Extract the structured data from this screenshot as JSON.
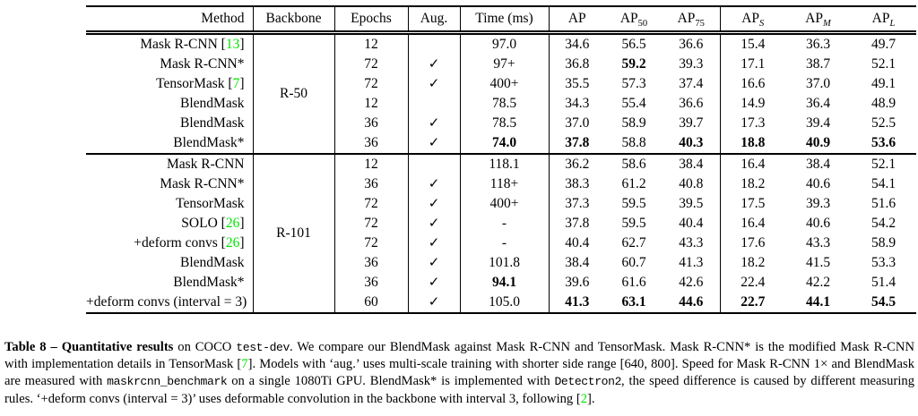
{
  "colors": {
    "citation_green": "#00e400",
    "text": "#000000",
    "background": "#ffffff"
  },
  "table": {
    "check_glyph": "✓",
    "headers": [
      {
        "key": "method",
        "label": "Method"
      },
      {
        "key": "backbone",
        "label": "Backbone"
      },
      {
        "key": "epochs",
        "label": "Epochs"
      },
      {
        "key": "aug",
        "label": "Aug."
      },
      {
        "key": "time",
        "label": "Time (ms)"
      },
      {
        "key": "ap",
        "label": "AP"
      },
      {
        "key": "ap50",
        "label": "AP",
        "sub": "50"
      },
      {
        "key": "ap75",
        "label": "AP",
        "sub": "75"
      },
      {
        "key": "aps",
        "label": "AP",
        "sub": "S",
        "italic_sub": true
      },
      {
        "key": "apm",
        "label": "AP",
        "sub": "M",
        "italic_sub": true
      },
      {
        "key": "apl",
        "label": "AP",
        "sub": "L",
        "italic_sub": true
      }
    ],
    "sections": [
      {
        "backbone": "R-50",
        "rows": [
          {
            "method": "Mask R-CNN",
            "ref": "13",
            "epochs": "12",
            "aug": false,
            "time": "97.0",
            "time_bold": false,
            "values": [
              "34.6",
              "56.5",
              "36.6",
              "15.4",
              "36.3",
              "49.7"
            ],
            "bold": []
          },
          {
            "method": "Mask R-CNN*",
            "ref": null,
            "epochs": "72",
            "aug": true,
            "time": "97+",
            "time_bold": false,
            "values": [
              "36.8",
              "59.2",
              "39.3",
              "17.1",
              "38.7",
              "52.1"
            ],
            "bold": [
              1
            ]
          },
          {
            "method": "TensorMask",
            "ref": "7",
            "epochs": "72",
            "aug": true,
            "time": "400+",
            "time_bold": false,
            "values": [
              "35.5",
              "57.3",
              "37.4",
              "16.6",
              "37.0",
              "49.1"
            ],
            "bold": []
          },
          {
            "method": "BlendMask",
            "ref": null,
            "epochs": "12",
            "aug": false,
            "time": "78.5",
            "time_bold": false,
            "values": [
              "34.3",
              "55.4",
              "36.6",
              "14.9",
              "36.4",
              "48.9"
            ],
            "bold": []
          },
          {
            "method": "BlendMask",
            "ref": null,
            "epochs": "36",
            "aug": true,
            "time": "78.5",
            "time_bold": false,
            "values": [
              "37.0",
              "58.9",
              "39.7",
              "17.3",
              "39.4",
              "52.5"
            ],
            "bold": []
          },
          {
            "method": "BlendMask*",
            "ref": null,
            "epochs": "36",
            "aug": true,
            "time": "74.0",
            "time_bold": true,
            "values": [
              "37.8",
              "58.8",
              "40.3",
              "18.8",
              "40.9",
              "53.6"
            ],
            "bold": [
              0,
              2,
              3,
              4,
              5
            ]
          }
        ]
      },
      {
        "backbone": "R-101",
        "rows": [
          {
            "method": "Mask R-CNN",
            "ref": null,
            "epochs": "12",
            "aug": false,
            "time": "118.1",
            "time_bold": false,
            "values": [
              "36.2",
              "58.6",
              "38.4",
              "16.4",
              "38.4",
              "52.1"
            ],
            "bold": []
          },
          {
            "method": "Mask R-CNN*",
            "ref": null,
            "epochs": "36",
            "aug": true,
            "time": "118+",
            "time_bold": false,
            "values": [
              "38.3",
              "61.2",
              "40.8",
              "18.2",
              "40.6",
              "54.1"
            ],
            "bold": []
          },
          {
            "method": "TensorMask",
            "ref": null,
            "epochs": "72",
            "aug": true,
            "time": "400+",
            "time_bold": false,
            "values": [
              "37.3",
              "59.5",
              "39.5",
              "17.5",
              "39.3",
              "51.6"
            ],
            "bold": []
          },
          {
            "method": "SOLO",
            "ref": "26",
            "epochs": "72",
            "aug": true,
            "time": "-",
            "time_bold": false,
            "values": [
              "37.8",
              "59.5",
              "40.4",
              "16.4",
              "40.6",
              "54.2"
            ],
            "bold": []
          },
          {
            "method": "+deform convs",
            "ref": "26",
            "epochs": "72",
            "aug": true,
            "time": "-",
            "time_bold": false,
            "values": [
              "40.4",
              "62.7",
              "43.3",
              "17.6",
              "43.3",
              "58.9"
            ],
            "bold": []
          },
          {
            "method": "BlendMask",
            "ref": null,
            "epochs": "36",
            "aug": true,
            "time": "101.8",
            "time_bold": false,
            "values": [
              "38.4",
              "60.7",
              "41.3",
              "18.2",
              "41.5",
              "53.3"
            ],
            "bold": []
          },
          {
            "method": "BlendMask*",
            "ref": null,
            "epochs": "36",
            "aug": true,
            "time": "94.1",
            "time_bold": true,
            "values": [
              "39.6",
              "61.6",
              "42.6",
              "22.4",
              "42.2",
              "51.4"
            ],
            "bold": []
          },
          {
            "method": "+deform convs (interval = 3)",
            "ref": null,
            "epochs": "60",
            "aug": true,
            "time": "105.0",
            "time_bold": false,
            "values": [
              "41.3",
              "63.1",
              "44.6",
              "22.7",
              "44.1",
              "54.5"
            ],
            "bold": [
              0,
              1,
              2,
              3,
              4,
              5
            ]
          }
        ]
      }
    ]
  },
  "caption": {
    "segments": [
      {
        "t": "Table 8 – Quantitative results",
        "s": "bold"
      },
      {
        "t": " on COCO "
      },
      {
        "t": "test-dev",
        "s": "mono"
      },
      {
        "t": ". We compare our BlendMask against Mask R-CNN and TensorMask. Mask R-CNN* is the modified Mask R-CNN with implementation details in TensorMask ["
      },
      {
        "t": "7",
        "s": "ref"
      },
      {
        "t": "]. Models with ‘aug.’ uses multi-scale training with shorter side range [640, 800]. Speed for Mask R-CNN 1× and BlendMask are measured with "
      },
      {
        "t": "maskrcnn_benchmark",
        "s": "mono"
      },
      {
        "t": " on a single 1080Ti GPU. BlendMask* is implemented with "
      },
      {
        "t": "Detectron2",
        "s": "mono"
      },
      {
        "t": ", the speed difference is caused by different measuring rules. ‘+deform convs (interval = 3)’ uses deformable convolution in the backbone with interval 3, following ["
      },
      {
        "t": "2",
        "s": "ref"
      },
      {
        "t": "]."
      }
    ]
  }
}
